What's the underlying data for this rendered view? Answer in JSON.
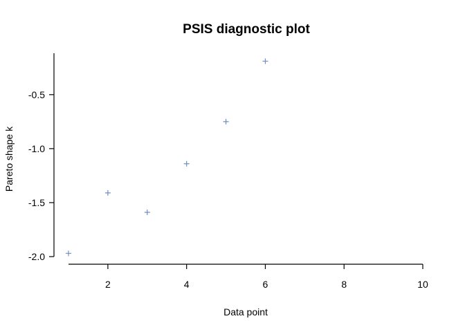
{
  "chart_data": {
    "type": "scatter",
    "title": "PSIS diagnostic plot",
    "xlabel": "Data point",
    "ylabel": "Pareto shape k",
    "xlim": [
      1,
      10
    ],
    "ylim": [
      -2.0,
      -0.2
    ],
    "xticks": [
      2,
      4,
      6,
      8,
      10
    ],
    "yticks": [
      -2.0,
      -1.5,
      -1.0,
      -0.5
    ],
    "ytick_labels": [
      "-2.0",
      "-1.5",
      "-1.0",
      "-0.5"
    ],
    "marker": "plus",
    "point_color": "#6E8FC4",
    "grid": false,
    "series": [
      {
        "x": [
          1,
          2,
          3,
          4,
          5,
          6
        ],
        "y": [
          -1.97,
          -1.41,
          -1.59,
          -1.14,
          -0.75,
          -0.19
        ]
      }
    ]
  }
}
